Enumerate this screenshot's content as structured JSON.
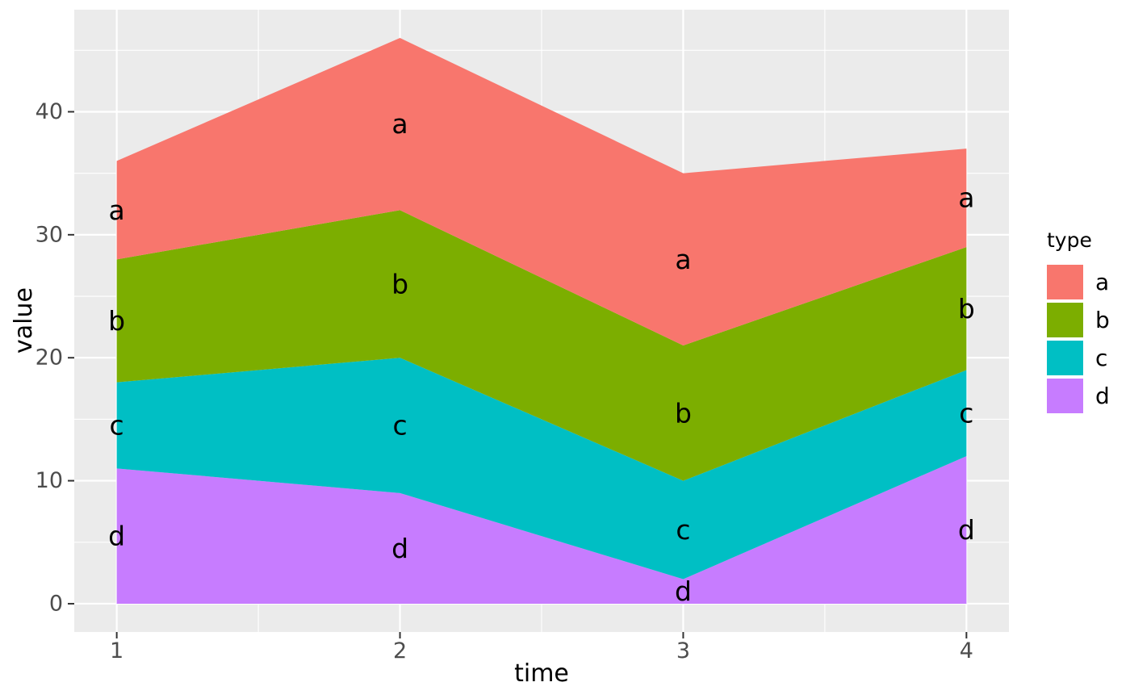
{
  "figure": {
    "background": "#FFFFFF",
    "panel_background": "#EBEBEB",
    "grid_color": "#FFFFFF",
    "tick_mark_color": "#333333",
    "tick_label_color": "#4D4D4D",
    "axis_title_color": "#000000",
    "area_label_color": "#000000"
  },
  "chart_data": {
    "type": "area",
    "stacked": true,
    "title": "",
    "xlabel": "time",
    "ylabel": "value",
    "x": [
      1,
      2,
      3,
      4
    ],
    "series": [
      {
        "name": "a",
        "color": "#F8766D",
        "values": [
          8,
          14,
          14,
          8
        ]
      },
      {
        "name": "b",
        "color": "#7CAE00",
        "values": [
          10,
          12,
          11,
          10
        ]
      },
      {
        "name": "c",
        "color": "#00BFC4",
        "values": [
          7,
          11,
          8,
          7
        ]
      },
      {
        "name": "d",
        "color": "#C77CFF",
        "values": [
          11,
          9,
          2,
          12
        ]
      }
    ],
    "stack_order_bottom_to_top": [
      "d",
      "c",
      "b",
      "a"
    ],
    "area_labels_note": "each band labeled with its series letter at every x position, centered vertically in the band",
    "x_ticks": [
      "1",
      "2",
      "3",
      "4"
    ],
    "y_ticks": [
      "0",
      "10",
      "20",
      "30",
      "40"
    ],
    "x_tick_values": [
      1,
      2,
      3,
      4
    ],
    "y_tick_values": [
      0,
      10,
      20,
      30,
      40
    ],
    "x_minor": [
      1.5,
      2.5,
      3.5
    ],
    "y_minor": [
      5,
      15,
      25,
      35,
      45
    ],
    "xlim": [
      0.85,
      4.15
    ],
    "ylim": [
      -2.3,
      48.3
    ],
    "grid": true,
    "legend": {
      "title": "type",
      "position": "right",
      "entries": [
        "a",
        "b",
        "c",
        "d"
      ]
    }
  }
}
